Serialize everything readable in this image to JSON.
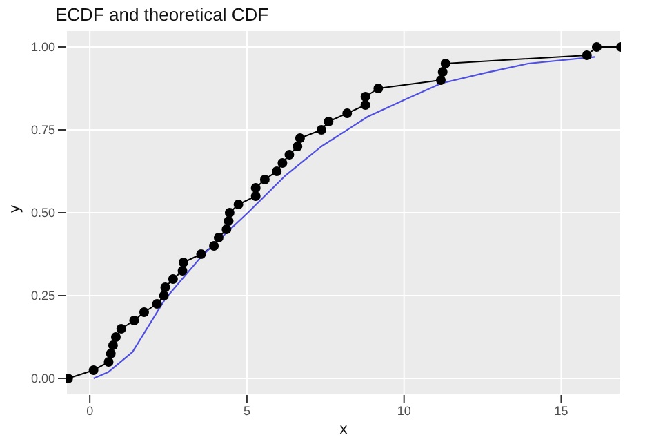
{
  "chart_data": {
    "type": "line",
    "title": "ECDF and theoretical CDF",
    "xlabel": "x",
    "ylabel": "y",
    "xlim": [
      -0.75,
      16.9
    ],
    "ylim": [
      -0.05,
      1.05
    ],
    "xticks": [
      0,
      5,
      10,
      15
    ],
    "yticks": [
      {
        "value": 0,
        "label": "0.00"
      },
      {
        "value": 0.25,
        "label": "0.25"
      },
      {
        "value": 0.5,
        "label": "0.50"
      },
      {
        "value": 0.75,
        "label": "0.75"
      },
      {
        "value": 1,
        "label": "1.00"
      }
    ],
    "grid": true,
    "series": [
      {
        "color": "#000000",
        "marker": "circle",
        "x": [
          -0.69,
          0.12,
          0.6,
          0.67,
          0.74,
          0.83,
          1.0,
          1.41,
          1.73,
          2.14,
          2.36,
          2.4,
          2.65,
          2.95,
          2.98,
          3.54,
          3.95,
          4.1,
          4.35,
          4.42,
          4.45,
          4.73,
          5.28,
          5.28,
          5.57,
          5.95,
          6.13,
          6.35,
          6.61,
          6.69,
          7.37,
          7.6,
          8.19,
          8.77,
          8.77,
          9.18,
          11.17,
          11.23,
          11.32,
          15.82,
          16.13,
          16.9
        ],
        "values": [
          0,
          0.025,
          0.05,
          0.075,
          0.1,
          0.125,
          0.15,
          0.175,
          0.2,
          0.225,
          0.25,
          0.275,
          0.3,
          0.325,
          0.35,
          0.375,
          0.4,
          0.425,
          0.45,
          0.475,
          0.5,
          0.525,
          0.55,
          0.575,
          0.6,
          0.625,
          0.65,
          0.675,
          0.7,
          0.725,
          0.75,
          0.775,
          0.8,
          0.825,
          0.85,
          0.875,
          0.9,
          0.925,
          0.95,
          0.975,
          1,
          1
        ]
      },
      {
        "color": "#4f4fe0",
        "marker": "none",
        "x": [
          0.12,
          0.6,
          1.36,
          2.4,
          3.57,
          5.03,
          6.2,
          7.37,
          8.85,
          10,
          11.18,
          12.5,
          13.95,
          16.08
        ],
        "values": [
          0,
          0.02,
          0.08,
          0.24,
          0.37,
          0.5,
          0.61,
          0.7,
          0.79,
          0.84,
          0.89,
          0.92,
          0.95,
          0.97
        ]
      }
    ]
  }
}
